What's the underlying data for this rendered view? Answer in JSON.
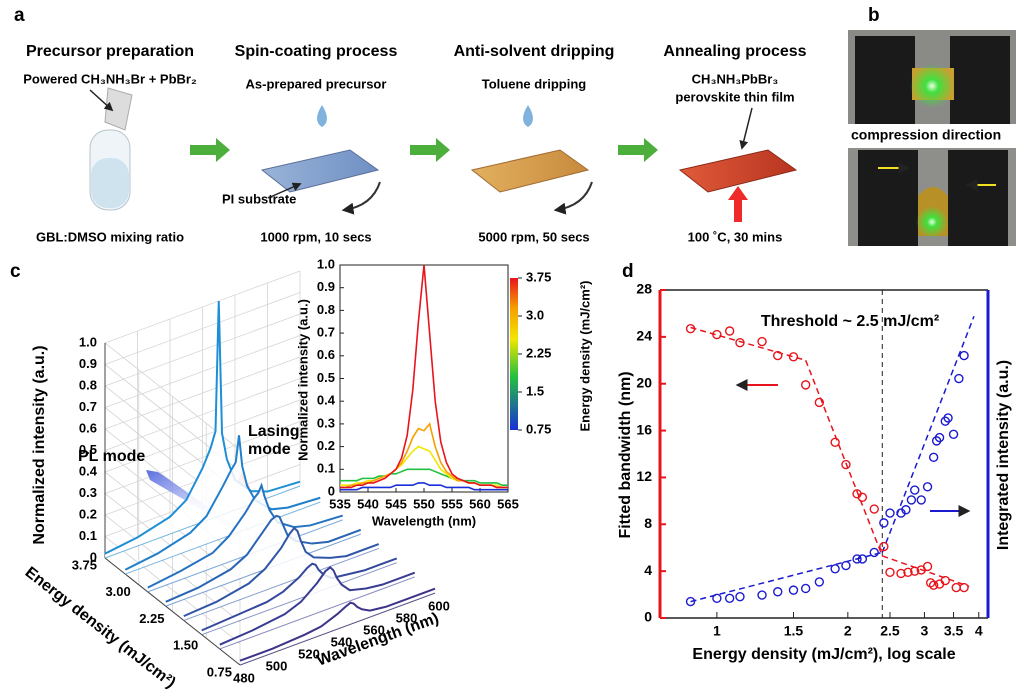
{
  "panels": [
    "a",
    "b",
    "c",
    "d"
  ],
  "schematic": {
    "steps": [
      {
        "title": "Precursor preparation",
        "top": "Powered CH₃NH₃Br + PbBr₂",
        "bottom": "GBL:DMSO mixing ratio"
      },
      {
        "title": "Spin-coating process",
        "top": "As-prepared precursor",
        "bottom": "1000 rpm, 10 secs"
      },
      {
        "title": "Anti-solvent dripping",
        "top": "Toluene dripping",
        "bottom": "5000 rpm, 50 secs"
      },
      {
        "title": "Annealing process",
        "top": "CH₃NH₃PbBr₃",
        "top2": "perovskite thin film",
        "bottom": "100 ˚C, 30 mins"
      }
    ],
    "substrate": "PI substrate"
  },
  "photo": {
    "caption": "compression direction"
  },
  "chart_data": [
    {
      "type": "waterfall3d",
      "zlabel": "Normalized intensity (a.u.)",
      "elabel": "Energy density (mJ/cm²)",
      "xlabel": "Wavelength (nm)",
      "x": [
        480,
        500,
        520,
        530,
        540,
        545,
        548,
        550,
        552,
        555,
        560,
        570,
        580,
        600
      ],
      "xlim": [
        480,
        600
      ],
      "xticks": [
        480,
        500,
        520,
        540,
        560,
        580,
        600
      ],
      "elim": [
        0.75,
        3.75
      ],
      "eticks": [
        0.75,
        {
          "value": 1.5,
          "label": "1.50"
        },
        2.25,
        {
          "value": 3,
          "label": "3.00"
        },
        3.75
      ],
      "zlim": [
        0,
        1
      ],
      "zticks": [
        0,
        0.1,
        0.2,
        0.3,
        0.4,
        0.5,
        0.6,
        0.7,
        0.8,
        0.9,
        {
          "value": 1,
          "label": "1.0"
        }
      ],
      "series": [
        {
          "energy": 3.75,
          "color": "#1e8fd6",
          "values": [
            0.02,
            0.04,
            0.08,
            0.13,
            0.25,
            0.33,
            0.4,
            1.0,
            0.38,
            0.25,
            0.14,
            0.06,
            0.03,
            0.02
          ]
        },
        {
          "energy": 3.3,
          "color": "#2080cc",
          "values": [
            0.02,
            0.04,
            0.08,
            0.13,
            0.24,
            0.3,
            0.33,
            0.45,
            0.3,
            0.2,
            0.12,
            0.05,
            0.03,
            0.02
          ]
        },
        {
          "energy": 2.8,
          "color": "#2572c0",
          "values": [
            0.02,
            0.04,
            0.07,
            0.12,
            0.2,
            0.25,
            0.27,
            0.3,
            0.24,
            0.17,
            0.1,
            0.05,
            0.03,
            0.02
          ]
        },
        {
          "energy": 2.4,
          "color": "#2a64b4",
          "values": [
            0.02,
            0.03,
            0.06,
            0.1,
            0.18,
            0.22,
            0.23,
            0.22,
            0.18,
            0.12,
            0.08,
            0.04,
            0.02,
            0.02
          ]
        },
        {
          "energy": 2.0,
          "color": "#2f56a8",
          "values": [
            0.02,
            0.03,
            0.06,
            0.1,
            0.17,
            0.22,
            0.24,
            0.22,
            0.17,
            0.11,
            0.07,
            0.04,
            0.02,
            0.02
          ]
        },
        {
          "energy": 1.6,
          "color": "#34489c",
          "values": [
            0.02,
            0.03,
            0.04,
            0.06,
            0.1,
            0.13,
            0.14,
            0.13,
            0.1,
            0.07,
            0.04,
            0.03,
            0.02,
            0.02
          ]
        },
        {
          "energy": 1.2,
          "color": "#383c92",
          "values": [
            0.02,
            0.03,
            0.05,
            0.08,
            0.14,
            0.18,
            0.19,
            0.17,
            0.13,
            0.09,
            0.05,
            0.03,
            0.02,
            0.02
          ]
        },
        {
          "energy": 0.75,
          "color": "#3c3488",
          "values": [
            0.02,
            0.02,
            0.03,
            0.04,
            0.07,
            0.09,
            0.1,
            0.09,
            0.07,
            0.05,
            0.03,
            0.02,
            0.02,
            0.02
          ]
        }
      ],
      "annotations": [
        {
          "lines": [
            "PL mode"
          ],
          "color": "#1f1fd0"
        },
        {
          "lines": [
            "Lasing",
            "mode"
          ],
          "color": "#f03030"
        }
      ]
    },
    {
      "type": "line",
      "xlabel": "Wavelength (nm)",
      "ylabel": "Normalized intensity (a.u.)",
      "x": [
        535,
        536,
        537,
        538,
        539,
        540,
        541,
        542,
        543,
        544,
        545,
        546,
        547,
        548,
        549,
        550,
        551,
        552,
        553,
        554,
        555,
        556,
        557,
        558,
        559,
        560,
        561,
        562,
        563,
        564,
        565
      ],
      "xlim": [
        535,
        565
      ],
      "xticks": [
        535,
        540,
        545,
        550,
        555,
        560,
        565
      ],
      "ylim": [
        0,
        1
      ],
      "yticks": [
        0,
        0.1,
        0.2,
        0.3,
        0.4,
        0.5,
        0.6,
        0.7,
        0.8,
        0.9,
        {
          "value": 1,
          "label": "1.0"
        }
      ],
      "series": [
        {
          "color": "#1a2fd8",
          "values": [
            0.01,
            0.01,
            0.01,
            0.01,
            0.02,
            0.02,
            0.02,
            0.02,
            0.02,
            0.02,
            0.03,
            0.03,
            0.03,
            0.03,
            0.04,
            0.04,
            0.03,
            0.03,
            0.03,
            0.02,
            0.02,
            0.02,
            0.02,
            0.02,
            0.01,
            0.01,
            0.01,
            0.01,
            0.01,
            0.01,
            0.01
          ]
        },
        {
          "color": "#22c040",
          "values": [
            0.05,
            0.05,
            0.05,
            0.05,
            0.06,
            0.06,
            0.06,
            0.07,
            0.07,
            0.08,
            0.08,
            0.09,
            0.1,
            0.1,
            0.1,
            0.1,
            0.1,
            0.09,
            0.08,
            0.07,
            0.06,
            0.06,
            0.05,
            0.05,
            0.05,
            0.04,
            0.04,
            0.04,
            0.04,
            0.03,
            0.03
          ]
        },
        {
          "color": "#f2e600",
          "values": [
            0.03,
            0.03,
            0.03,
            0.04,
            0.04,
            0.05,
            0.05,
            0.06,
            0.07,
            0.08,
            0.1,
            0.12,
            0.15,
            0.18,
            0.2,
            0.19,
            0.18,
            0.14,
            0.1,
            0.08,
            0.06,
            0.05,
            0.05,
            0.04,
            0.04,
            0.03,
            0.03,
            0.03,
            0.03,
            0.02,
            0.02
          ]
        },
        {
          "color": "#f5a000",
          "values": [
            0.02,
            0.02,
            0.03,
            0.03,
            0.04,
            0.04,
            0.05,
            0.06,
            0.07,
            0.08,
            0.1,
            0.13,
            0.18,
            0.24,
            0.28,
            0.27,
            0.3,
            0.2,
            0.13,
            0.09,
            0.07,
            0.05,
            0.05,
            0.04,
            0.04,
            0.03,
            0.03,
            0.03,
            0.02,
            0.02,
            0.02
          ]
        },
        {
          "color": "#e8141c",
          "values": [
            0.02,
            0.02,
            0.02,
            0.03,
            0.03,
            0.04,
            0.04,
            0.05,
            0.06,
            0.08,
            0.1,
            0.15,
            0.25,
            0.45,
            0.75,
            1.0,
            0.7,
            0.4,
            0.22,
            0.13,
            0.08,
            0.06,
            0.05,
            0.04,
            0.04,
            0.03,
            0.03,
            0.03,
            0.02,
            0.02,
            0.02
          ]
        }
      ],
      "colorbar": {
        "label": "Energy density (mJ/cm²)",
        "lim": [
          0.75,
          3.75
        ],
        "ticks": [
          3.75,
          {
            "value": 3,
            "label": "3.0"
          },
          2.25,
          1.5,
          0.75
        ]
      }
    },
    {
      "type": "scatter",
      "log_x": true,
      "xlabel": "Energy density (mJ/cm²), log scale",
      "ylabel": "Fitted bandwidth (nm)",
      "y2label": "Integrated intensity (a.u.)",
      "xlim": [
        0.74,
        4.2
      ],
      "xticks": [
        1,
        1.5,
        2,
        2.5,
        3,
        3.5,
        4
      ],
      "ylim": [
        0,
        28
      ],
      "yticks": [
        0,
        4,
        8,
        12,
        16,
        20,
        24,
        28
      ],
      "y2lim": [
        0,
        1
      ],
      "series": [
        {
          "color": "#e8141c",
          "x": [
            0.87,
            1.0,
            1.07,
            1.13,
            1.27,
            1.38,
            1.5,
            1.6,
            1.72,
            1.87,
            1.98,
            2.1,
            2.16,
            2.3,
            2.42,
            2.5,
            2.65,
            2.75,
            2.85,
            2.95,
            3.05,
            3.1,
            3.15,
            3.25,
            3.35,
            3.55,
            3.7
          ],
          "values": [
            24.7,
            24.2,
            24.5,
            23.5,
            23.6,
            22.4,
            22.3,
            19.9,
            18.4,
            15.0,
            13.1,
            10.6,
            10.3,
            9.3,
            6.1,
            3.9,
            3.8,
            3.9,
            4.0,
            4.1,
            4.4,
            3.0,
            2.8,
            2.9,
            3.2,
            2.6,
            2.6
          ]
        },
        {
          "color": "#1a1ad0",
          "axis": "y2",
          "x": [
            0.87,
            1.0,
            1.07,
            1.13,
            1.27,
            1.38,
            1.5,
            1.6,
            1.72,
            1.87,
            1.98,
            2.1,
            2.16,
            2.3,
            2.42,
            2.5,
            2.65,
            2.72,
            2.8,
            2.85,
            2.95,
            3.05,
            3.15,
            3.2,
            3.25,
            3.35,
            3.4,
            3.5,
            3.6,
            3.7
          ],
          "values": [
            0.05,
            0.06,
            0.06,
            0.065,
            0.07,
            0.08,
            0.085,
            0.09,
            0.11,
            0.15,
            0.16,
            0.18,
            0.18,
            0.2,
            0.29,
            0.32,
            0.32,
            0.33,
            0.36,
            0.39,
            0.36,
            0.4,
            0.49,
            0.54,
            0.55,
            0.6,
            0.61,
            0.56,
            0.73,
            0.8
          ]
        }
      ],
      "fits": [
        {
          "color": "#e8141c",
          "x": [
            0.87,
            1.6
          ],
          "values": [
            24.8,
            22.0
          ]
        },
        {
          "color": "#e8141c",
          "x": [
            1.6,
            2.4
          ],
          "values": [
            22.0,
            5.3
          ]
        },
        {
          "color": "#e8141c",
          "x": [
            2.4,
            3.8
          ],
          "values": [
            5.3,
            2.7
          ]
        },
        {
          "color": "#1a1ad0",
          "axis": "y2",
          "x": [
            0.87,
            2.4
          ],
          "values": [
            0.05,
            0.2
          ]
        },
        {
          "color": "#1a1ad0",
          "axis": "y2",
          "x": [
            2.4,
            3.9
          ],
          "values": [
            0.2,
            0.92
          ]
        }
      ],
      "threshold": {
        "x": 2.4,
        "label": "Threshold ~ 2.5 mJ/cm²"
      }
    }
  ]
}
